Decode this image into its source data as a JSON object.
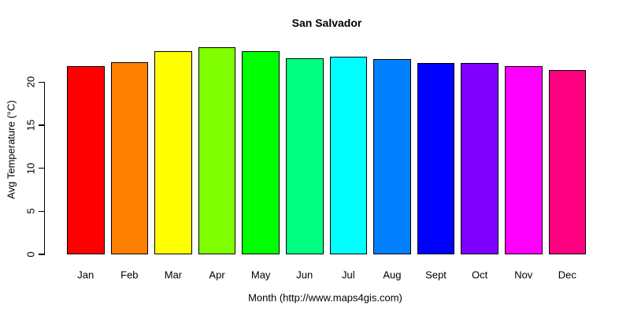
{
  "chart_data": {
    "type": "bar",
    "title": "San Salvador",
    "xlabel": "Month (http://www.maps4gis.com)",
    "ylabel": "Avg Temperature (°C)",
    "categories": [
      "Jan",
      "Feb",
      "Mar",
      "Apr",
      "May",
      "Jun",
      "Jul",
      "Aug",
      "Sept",
      "Oct",
      "Nov",
      "Dec"
    ],
    "values": [
      21.9,
      22.3,
      23.6,
      24.1,
      23.6,
      22.8,
      23.0,
      22.7,
      22.2,
      22.2,
      21.9,
      21.4
    ],
    "bar_colors": [
      "#FF0000",
      "#FF8000",
      "#FFFF00",
      "#80FF00",
      "#00FF00",
      "#00FF80",
      "#00FFFF",
      "#0080FF",
      "#0000FF",
      "#8000FF",
      "#FF00FF",
      "#FF0080"
    ],
    "bar_border_color": "#000000",
    "y_ticks": [
      0,
      5,
      10,
      15,
      20
    ],
    "ylim": [
      0,
      24.5
    ],
    "grid": false,
    "legend": "none",
    "axis_color": "#000000",
    "background_color": "#FFFFFF"
  }
}
